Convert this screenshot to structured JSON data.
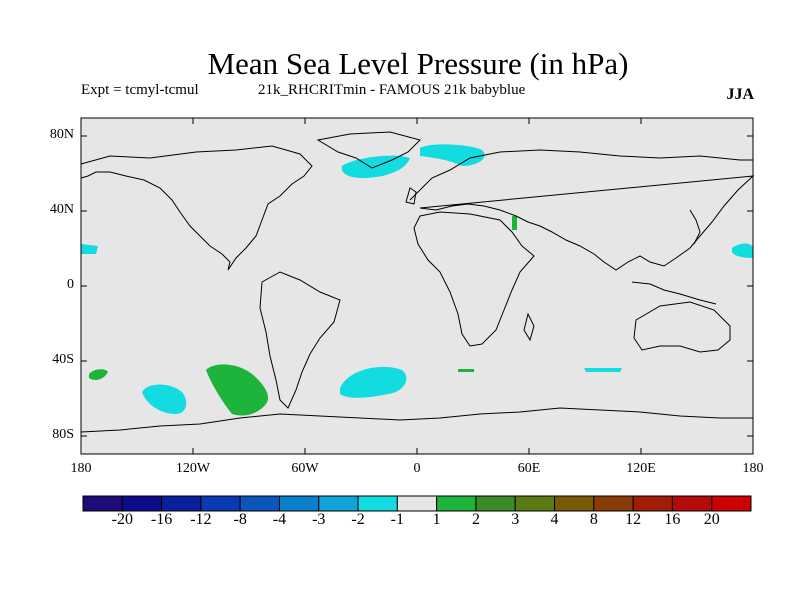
{
  "title": "Mean Sea Level Pressure (in hPa)",
  "subtitle_left": "Expt = tcmyl-tcmul",
  "subtitle_center": "21k_RHCRITmin - FAMOUS 21k babyblue",
  "season": "JJA",
  "lat_ticks": [
    "80N",
    "40N",
    "0",
    "40S",
    "80S"
  ],
  "lon_ticks": [
    "180",
    "120W",
    "60W",
    "0",
    "60E",
    "120E",
    "180"
  ],
  "colorbar": {
    "colors": [
      "#1e0a78",
      "#0c0c88",
      "#08209c",
      "#0a3ab0",
      "#0a56bc",
      "#0a80cc",
      "#10a4d8",
      "#12dce0",
      "#e6e6e6",
      "#1eb43c",
      "#3a8a28",
      "#5a7a14",
      "#785a06",
      "#8a3c06",
      "#a01e08",
      "#b40a0a",
      "#cc0000"
    ],
    "labels": [
      "-20",
      "-16",
      "-12",
      "-8",
      "-4",
      "-3",
      "-2",
      "-1",
      "1",
      "2",
      "3",
      "4",
      "8",
      "12",
      "16",
      "20"
    ]
  },
  "colors": {
    "ocean": "#e6e6e6",
    "negative_anomaly": "#12dce0",
    "positive_anomaly": "#1eb43c",
    "coast": "#000000"
  }
}
